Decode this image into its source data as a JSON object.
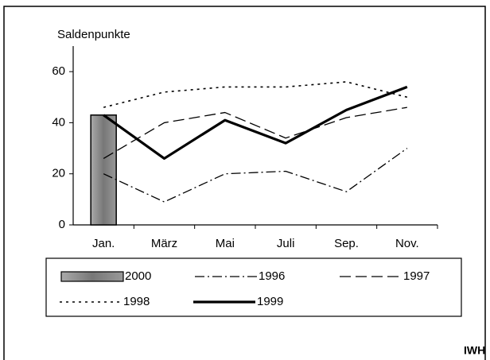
{
  "chart_data": {
    "type": "line",
    "y_label": "Saldenpunkte",
    "source": "IWH",
    "categories": [
      "Jan.",
      "März",
      "Mai",
      "Juli",
      "Sep.",
      "Nov."
    ],
    "ylim": [
      0,
      70
    ],
    "yticks": [
      0,
      20,
      40,
      60
    ],
    "series": [
      {
        "name": "2000",
        "type": "bar",
        "color": "#8c8c8c",
        "values": [
          43,
          null,
          null,
          null,
          null,
          null
        ]
      },
      {
        "name": "1996",
        "type": "line",
        "style": "dash-dot",
        "color": "#000000",
        "values": [
          20,
          9,
          20,
          21,
          13,
          30
        ]
      },
      {
        "name": "1997",
        "type": "line",
        "style": "dashed",
        "color": "#000000",
        "values": [
          26,
          40,
          44,
          34,
          42,
          46
        ]
      },
      {
        "name": "1998",
        "type": "line",
        "style": "dotted",
        "color": "#000000",
        "values": [
          46,
          52,
          54,
          54,
          56,
          50
        ]
      },
      {
        "name": "1999",
        "type": "line",
        "style": "thick",
        "color": "#000000",
        "values": [
          43,
          26,
          41,
          32,
          45,
          54
        ]
      }
    ]
  }
}
